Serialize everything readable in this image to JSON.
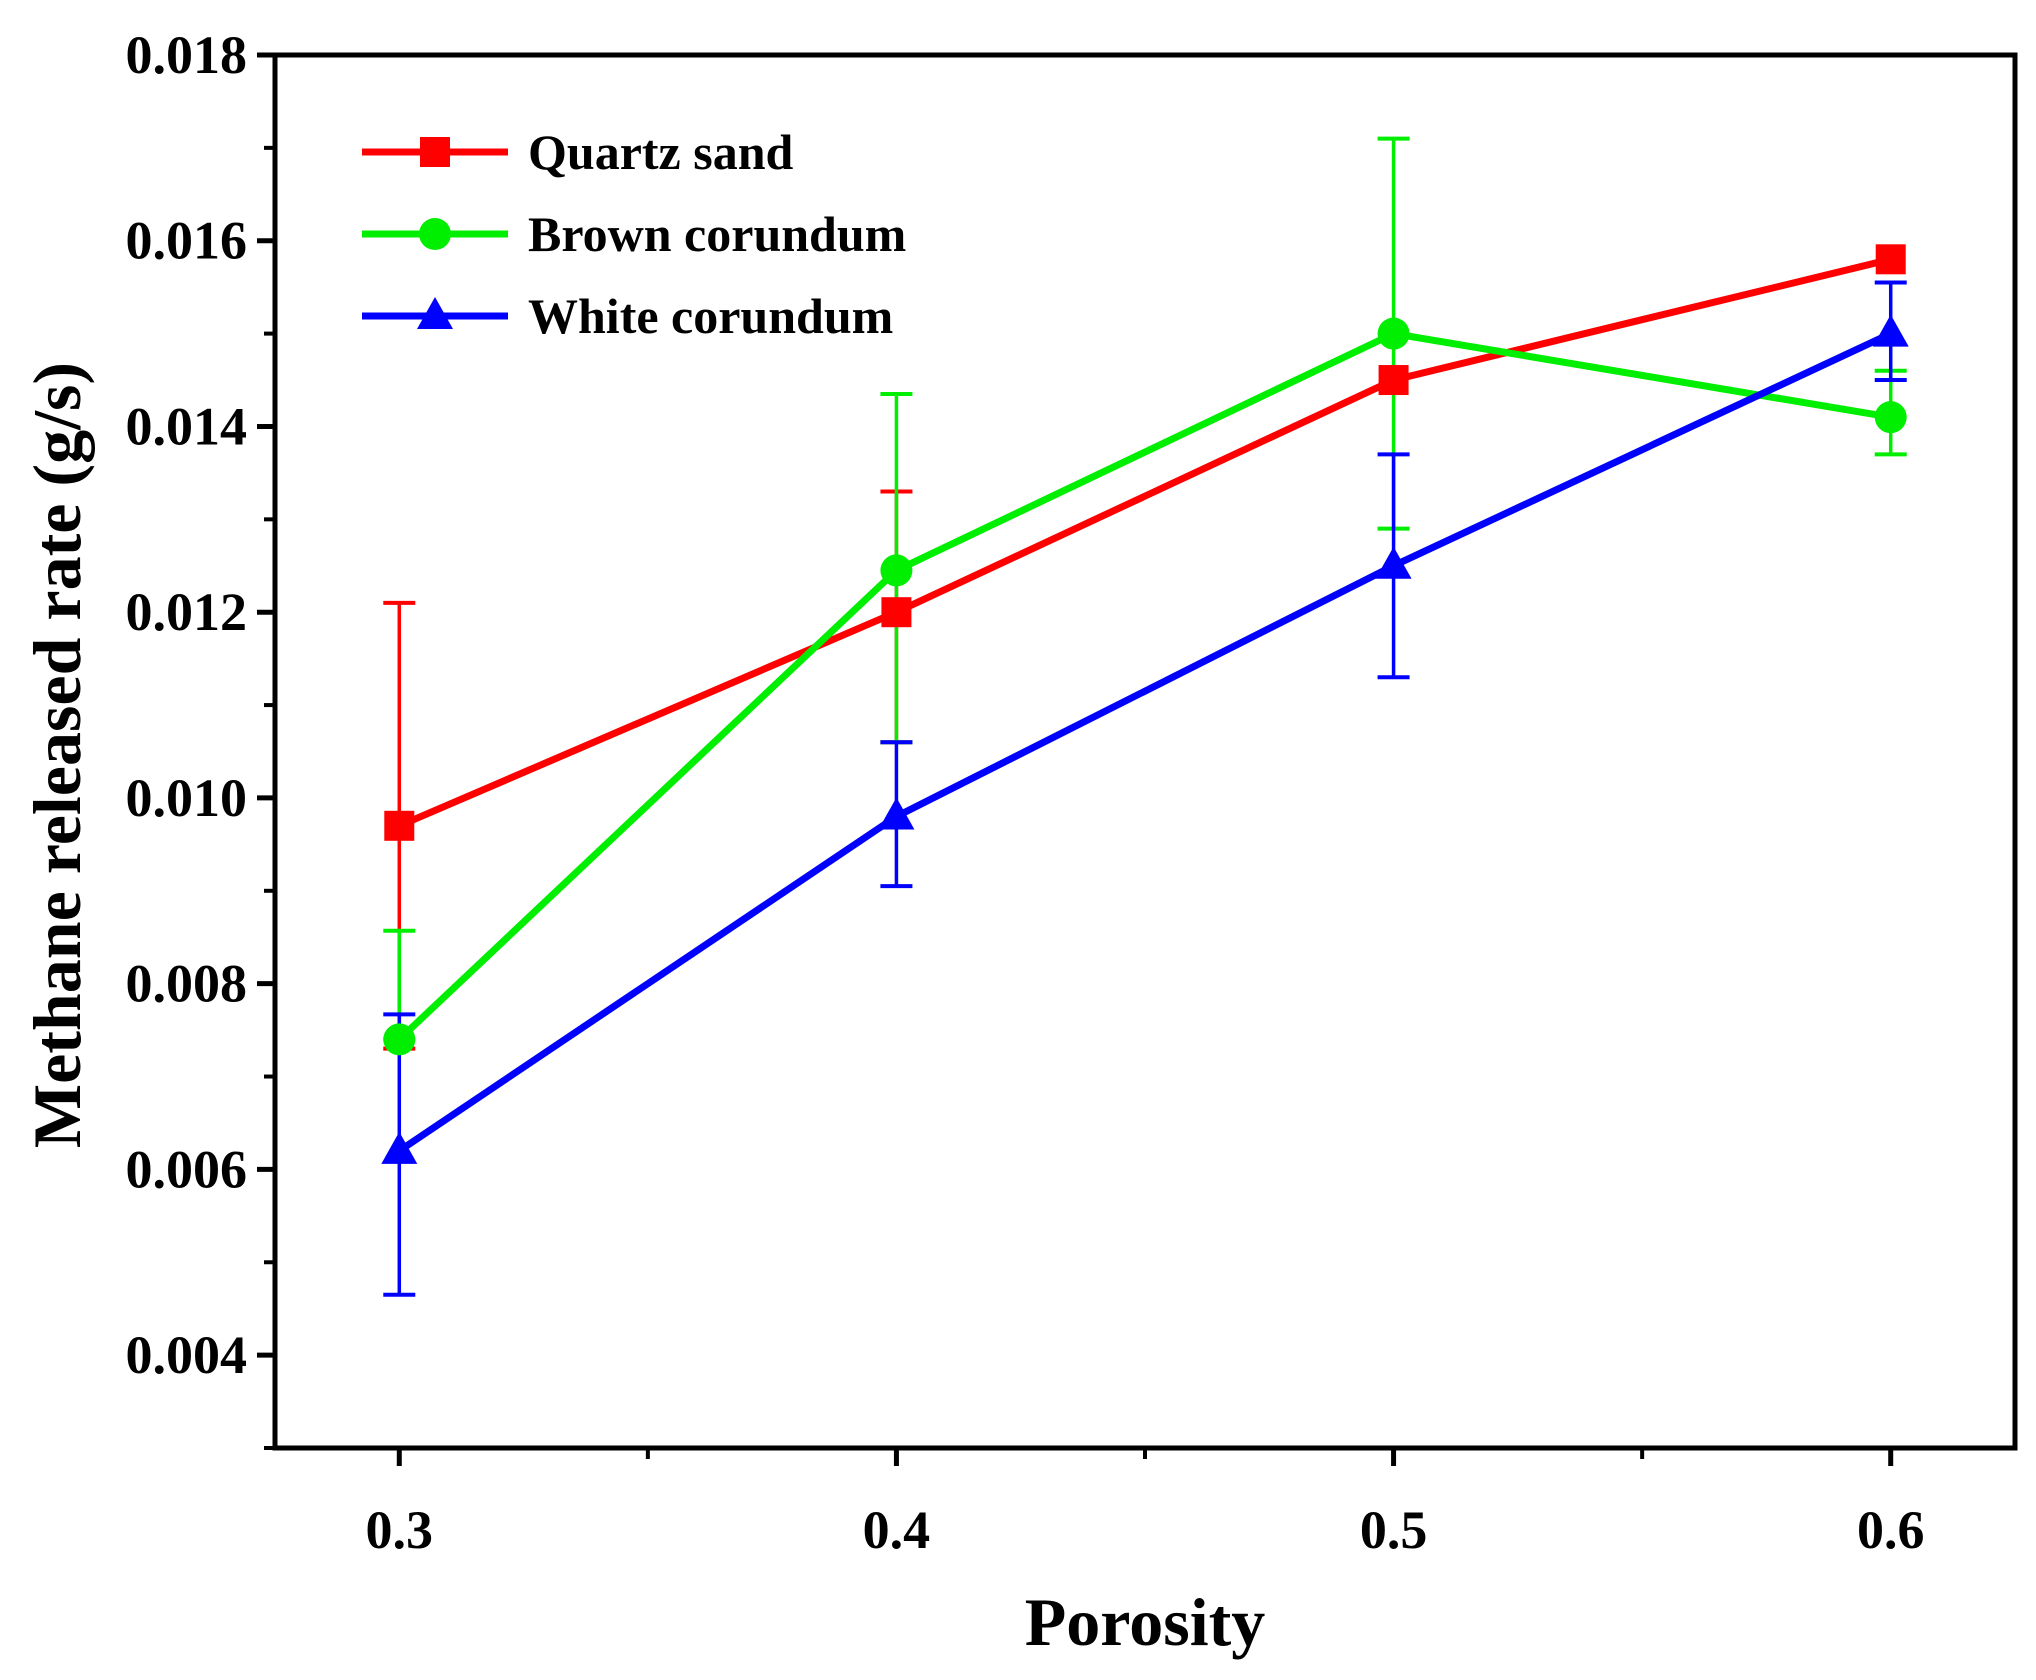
{
  "chart_data": {
    "type": "line",
    "title": "",
    "xlabel": "Porosity",
    "ylabel": "Methane released rate (g/s)",
    "x": [
      0.3,
      0.4,
      0.5,
      0.6
    ],
    "x_tick_labels": [
      "0.3",
      "0.4",
      "0.5",
      "0.6"
    ],
    "xlim": [
      0.275,
      0.625
    ],
    "ylim": [
      0.003,
      0.018
    ],
    "y_ticks": [
      0.004,
      0.006,
      0.008,
      0.01,
      0.012,
      0.014,
      0.016,
      0.018
    ],
    "y_tick_labels": [
      "0.004",
      "0.006",
      "0.008",
      "0.010",
      "0.012",
      "0.014",
      "0.016",
      "0.018"
    ],
    "grid": false,
    "legend_position": "top-left",
    "series": [
      {
        "name": "Quartz sand",
        "color": "#ff0000",
        "marker": "square",
        "values": [
          0.0097,
          0.012,
          0.0145,
          0.0158
        ],
        "error_low": [
          0.0073,
          0.0106,
          0.0145,
          0.0158
        ],
        "error_high": [
          0.0121,
          0.0133,
          0.0145,
          0.0158
        ]
      },
      {
        "name": "Brown corundum",
        "color": "#00ee00",
        "marker": "circle",
        "values": [
          0.0074,
          0.01245,
          0.015,
          0.0141
        ],
        "error_low": [
          0.0074,
          0.0106,
          0.0129,
          0.0137
        ],
        "error_high": [
          0.00857,
          0.01435,
          0.0171,
          0.0146
        ]
      },
      {
        "name": "White corundum",
        "color": "#0000ff",
        "marker": "triangle",
        "values": [
          0.0062,
          0.0098,
          0.0125,
          0.015
        ],
        "error_low": [
          0.00465,
          0.00905,
          0.0113,
          0.0145
        ],
        "error_high": [
          0.00767,
          0.0106,
          0.0137,
          0.01555
        ]
      }
    ]
  }
}
